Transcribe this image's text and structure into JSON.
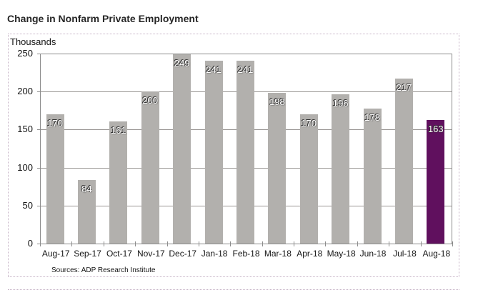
{
  "title": "Change in Nonfarm Private Employment",
  "source_note": "Sources: ADP Research Institute",
  "chart_data": {
    "type": "bar",
    "title": "Change in Nonfarm Private Employment",
    "units_label": "Thousands",
    "xlabel": "",
    "ylabel": "Thousands",
    "categories": [
      "Aug-17",
      "Sep-17",
      "Oct-17",
      "Nov-17",
      "Dec-17",
      "Jan-18",
      "Feb-18",
      "Mar-18",
      "Apr-18",
      "May-18",
      "Jun-18",
      "Jul-18",
      "Aug-18"
    ],
    "values": [
      170,
      84,
      161,
      200,
      249,
      241,
      241,
      198,
      170,
      196,
      178,
      217,
      163
    ],
    "highlight_index": 12,
    "ylim": [
      0,
      250
    ],
    "yticks": [
      0,
      50,
      100,
      150,
      200,
      250
    ],
    "grid": "horizontal",
    "legend_position": "none",
    "data_labels": "inside-end",
    "colors": {
      "bar_fill": "#b2b0ad",
      "highlight_bar_fill": "#60105e",
      "bar_label_text": "#ffffff",
      "grid_line": "#999693",
      "axis_line": "#8c8c8c",
      "text": "#141414",
      "panel_border": "#c6b2c6"
    }
  }
}
